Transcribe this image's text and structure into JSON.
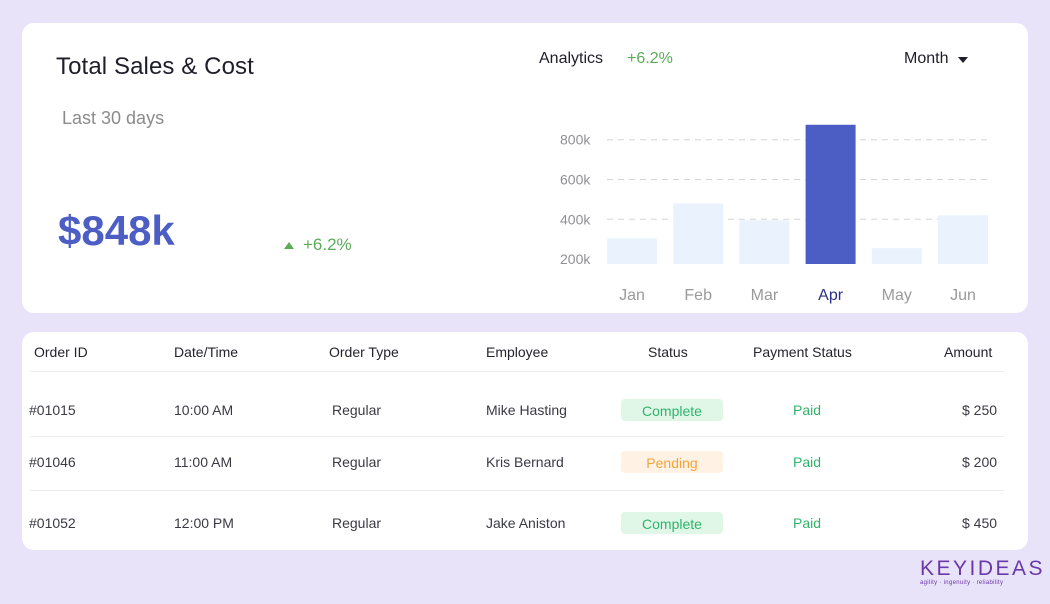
{
  "summary": {
    "title": "Total Sales & Cost",
    "period": "Last 30 days",
    "total": "$848k",
    "change": "+6.2%"
  },
  "analytics": {
    "label": "Analytics",
    "change": "+6.2%",
    "period_select": "Month"
  },
  "chart_data": {
    "type": "bar",
    "categories": [
      "Jan",
      "Feb",
      "Mar",
      "Apr",
      "May",
      "Jun"
    ],
    "values": [
      305,
      480,
      395,
      875,
      255,
      420
    ],
    "highlight": "Apr",
    "y_ticks": [
      "800k",
      "600k",
      "400k",
      "200k"
    ],
    "ylim": [
      100,
      900
    ],
    "grid": true,
    "colors": {
      "bar": "#eaf3fd",
      "highlight": "#4c5ec4",
      "label": "#9a9a9a",
      "highlight_label": "#2d2f86"
    }
  },
  "orders": {
    "columns": [
      "Order ID",
      "Date/Time",
      "Order Type",
      "Employee",
      "Status",
      "Payment Status",
      "Amount"
    ],
    "rows": [
      {
        "id": "#01015",
        "time": "10:00 AM",
        "type": "Regular",
        "employee": "Mike Hasting",
        "status": "Complete",
        "payment": "Paid",
        "amount": "$ 250"
      },
      {
        "id": "#01046",
        "time": "11:00 AM",
        "type": "Regular",
        "employee": "Kris Bernard",
        "status": "Pending",
        "payment": "Paid",
        "amount": "$ 200"
      },
      {
        "id": "#01052",
        "time": "12:00 PM",
        "type": "Regular",
        "employee": "Jake Aniston",
        "status": "Complete",
        "payment": "Paid",
        "amount": "$ 450"
      }
    ]
  },
  "brand": {
    "name": "KEYIDEAS",
    "tagline": "agility · ingenuity · reliability"
  }
}
